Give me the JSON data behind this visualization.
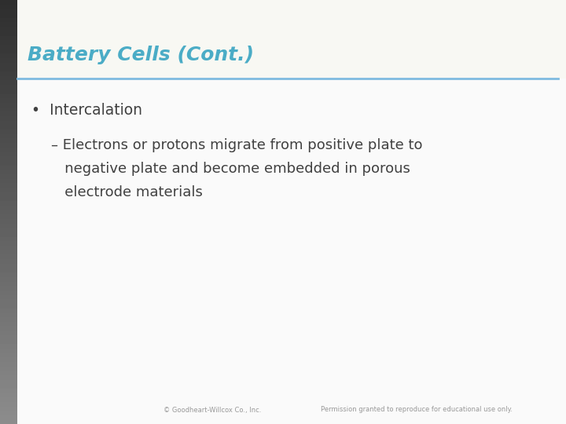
{
  "title": "Battery Cells (Cont.)",
  "title_color": "#4BACC6",
  "title_fontsize": 18,
  "title_italic": true,
  "title_bold": true,
  "separator_color": "#7FBBE0",
  "separator_lw": 2.0,
  "bullet_text": "Intercalation",
  "bullet_fontsize": 13.5,
  "bullet_color": "#404040",
  "sub_bullet_lines": [
    "– Electrons or protons migrate from positive plate to",
    "   negative plate and become embedded in porous",
    "   electrode materials"
  ],
  "sub_bullet_fontsize": 13.0,
  "sub_bullet_color": "#404040",
  "footer_left": "© Goodheart-Willcox Co., Inc.",
  "footer_right": "Permission granted to reproduce for educational use only.",
  "footer_fontsize": 6.0,
  "footer_color": "#999999",
  "background_color": "#FAFAFA",
  "slide_bg": "#F5F5F0"
}
